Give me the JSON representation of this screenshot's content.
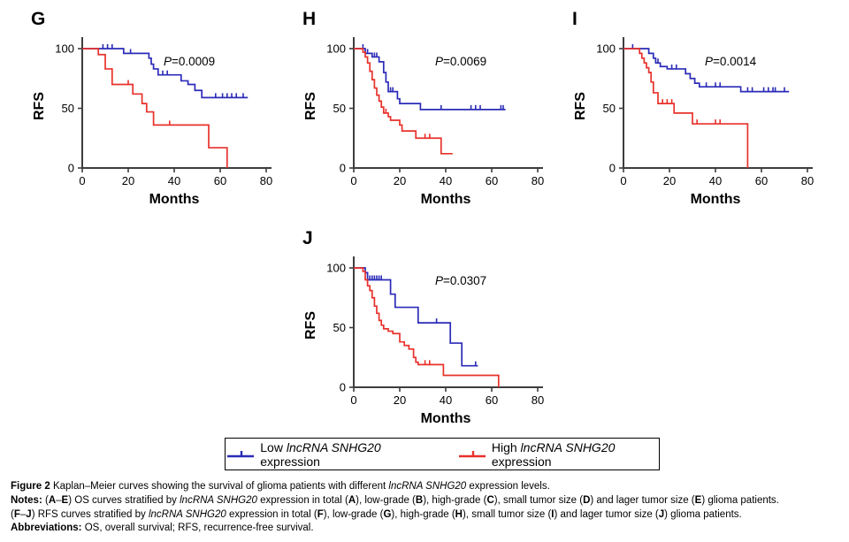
{
  "colors": {
    "low_line": "#2b2bb8",
    "high_line": "#e8312b",
    "axis": "#3d3d3d",
    "text": "#000000"
  },
  "legend": {
    "entries": [
      {
        "key": "low",
        "segments": [
          {
            "t": "Low "
          },
          {
            "t": "lncRNA SNHG20",
            "i": true
          },
          {
            "t": " expression"
          }
        ]
      },
      {
        "key": "high",
        "segments": [
          {
            "t": "High "
          },
          {
            "t": "lncRNA SNHG20",
            "i": true
          },
          {
            "t": " expression"
          }
        ]
      }
    ]
  },
  "caption": {
    "lines": [
      [
        {
          "t": "Figure 2 ",
          "b": true
        },
        {
          "t": "Kaplan–Meier curves showing the survival of glioma patients with different "
        },
        {
          "t": "lncRNA SNHG20",
          "i": true
        },
        {
          "t": " expression levels."
        }
      ],
      [
        {
          "t": "Notes: ",
          "b": true
        },
        {
          "t": "("
        },
        {
          "t": "A",
          "b": true
        },
        {
          "t": "–"
        },
        {
          "t": "E",
          "b": true
        },
        {
          "t": ") OS curves stratified by "
        },
        {
          "t": "lncRNA SNHG20",
          "i": true
        },
        {
          "t": " expression in total ("
        },
        {
          "t": "A",
          "b": true
        },
        {
          "t": "), low-grade ("
        },
        {
          "t": "B",
          "b": true
        },
        {
          "t": "), high-grade ("
        },
        {
          "t": "C",
          "b": true
        },
        {
          "t": "), small tumor size ("
        },
        {
          "t": "D",
          "b": true
        },
        {
          "t": ") and lager tumor size ("
        },
        {
          "t": "E",
          "b": true
        },
        {
          "t": ") glioma patients."
        }
      ],
      [
        {
          "t": "("
        },
        {
          "t": "F",
          "b": true
        },
        {
          "t": "–"
        },
        {
          "t": "J",
          "b": true
        },
        {
          "t": ") RFS curves stratified by "
        },
        {
          "t": "lncRNA SNHG20",
          "i": true
        },
        {
          "t": " expression in total ("
        },
        {
          "t": "F",
          "b": true
        },
        {
          "t": "), low-grade ("
        },
        {
          "t": "G",
          "b": true
        },
        {
          "t": "), high-grade ("
        },
        {
          "t": "H",
          "b": true
        },
        {
          "t": "), small tumor size ("
        },
        {
          "t": "I",
          "b": true
        },
        {
          "t": ") and lager tumor size ("
        },
        {
          "t": "J",
          "b": true
        },
        {
          "t": ") glioma patients."
        }
      ],
      [
        {
          "t": "Abbreviations: ",
          "b": true
        },
        {
          "t": "OS, overall survival; RFS, recurrence-free survival."
        }
      ]
    ]
  },
  "chart_data": {
    "type": "line",
    "subtype": "kaplan-meier-step",
    "xlabel": "Months",
    "ylabel": "RFS",
    "xticks": [
      0,
      20,
      40,
      60,
      80
    ],
    "yticks": [
      0,
      50,
      100
    ],
    "xlim": [
      0,
      80
    ],
    "ylim": [
      0,
      100
    ],
    "legend_position": "bottom-box",
    "panels": [
      {
        "label": "G",
        "p_text": "P",
        "p_value": "=0.0009",
        "series": [
          {
            "name": "Low lncRNA SNHG20 expression",
            "color_key": "low",
            "drops": [
              [
                18,
                96
              ],
              [
                29,
                92
              ],
              [
                30,
                87
              ],
              [
                31,
                83
              ],
              [
                33,
                78
              ],
              [
                43,
                73
              ],
              [
                46,
                70
              ],
              [
                49,
                65
              ],
              [
                52,
                59
              ]
            ],
            "end": 72,
            "censors": [
              [
                9,
                100
              ],
              [
                11,
                100
              ],
              [
                13,
                100
              ],
              [
                21,
                96
              ],
              [
                35,
                78
              ],
              [
                37,
                78
              ],
              [
                58,
                59
              ],
              [
                61,
                59
              ],
              [
                63,
                59
              ],
              [
                65,
                59
              ],
              [
                67,
                59
              ],
              [
                70,
                59
              ]
            ]
          },
          {
            "name": "High lncRNA SNHG20 expression",
            "color_key": "high",
            "drops": [
              [
                7,
                95
              ],
              [
                10,
                83
              ],
              [
                13,
                70
              ],
              [
                22,
                62
              ],
              [
                26,
                54
              ],
              [
                28,
                47
              ],
              [
                31,
                36
              ],
              [
                55,
                17
              ],
              [
                63,
                0
              ]
            ],
            "end": 63,
            "censors": [
              [
                20,
                70
              ],
              [
                38,
                36
              ]
            ]
          }
        ]
      },
      {
        "label": "H",
        "p_text": "P",
        "p_value": "=0.0069",
        "series": [
          {
            "name": "Low lncRNA SNHG20 expression",
            "color_key": "low",
            "drops": [
              [
                5,
                96
              ],
              [
                8,
                93
              ],
              [
                11,
                89
              ],
              [
                13,
                80
              ],
              [
                14,
                72
              ],
              [
                15,
                64
              ],
              [
                19,
                58
              ],
              [
                20,
                54
              ],
              [
                29,
                49
              ]
            ],
            "end": 66,
            "censors": [
              [
                4,
                100
              ],
              [
                6,
                96
              ],
              [
                9,
                93
              ],
              [
                10,
                93
              ],
              [
                16,
                64
              ],
              [
                17,
                64
              ],
              [
                38,
                49
              ],
              [
                51,
                49
              ],
              [
                53,
                49
              ],
              [
                55,
                49
              ],
              [
                64,
                49
              ],
              [
                65,
                49
              ]
            ]
          },
          {
            "name": "High lncRNA SNHG20 expression",
            "color_key": "high",
            "drops": [
              [
                4,
                97
              ],
              [
                5,
                93
              ],
              [
                6,
                88
              ],
              [
                7,
                81
              ],
              [
                8,
                74
              ],
              [
                9,
                67
              ],
              [
                10,
                61
              ],
              [
                11,
                56
              ],
              [
                12,
                51
              ],
              [
                13,
                46
              ],
              [
                15,
                43
              ],
              [
                16,
                40
              ],
              [
                20,
                36
              ],
              [
                21,
                31
              ],
              [
                27,
                25
              ],
              [
                38,
                12
              ]
            ],
            "end": 43,
            "censors": [
              [
                14,
                46
              ],
              [
                31,
                25
              ],
              [
                33,
                25
              ]
            ]
          }
        ]
      },
      {
        "label": "I",
        "p_text": "P",
        "p_value": "=0.0014",
        "series": [
          {
            "name": "Low lncRNA SNHG20 expression",
            "color_key": "low",
            "drops": [
              [
                11,
                96
              ],
              [
                13,
                92
              ],
              [
                14,
                88
              ],
              [
                16,
                85
              ],
              [
                19,
                83
              ],
              [
                27,
                79
              ],
              [
                29,
                75
              ],
              [
                31,
                71
              ],
              [
                33,
                68
              ],
              [
                51,
                64
              ]
            ],
            "end": 72,
            "censors": [
              [
                4,
                100
              ],
              [
                15,
                88
              ],
              [
                21,
                83
              ],
              [
                23,
                83
              ],
              [
                36,
                68
              ],
              [
                40,
                68
              ],
              [
                42,
                68
              ],
              [
                54,
                64
              ],
              [
                56,
                64
              ],
              [
                61,
                64
              ],
              [
                63,
                64
              ],
              [
                65,
                64
              ],
              [
                66,
                64
              ],
              [
                70,
                64
              ]
            ]
          },
          {
            "name": "High lncRNA SNHG20 expression",
            "color_key": "high",
            "drops": [
              [
                7,
                96
              ],
              [
                8,
                92
              ],
              [
                9,
                88
              ],
              [
                10,
                84
              ],
              [
                11,
                80
              ],
              [
                12,
                72
              ],
              [
                13,
                63
              ],
              [
                15,
                54
              ],
              [
                22,
                46
              ],
              [
                30,
                37
              ],
              [
                54,
                0
              ]
            ],
            "end": 54,
            "censors": [
              [
                17,
                54
              ],
              [
                19,
                54
              ],
              [
                21,
                54
              ],
              [
                32,
                37
              ],
              [
                40,
                37
              ],
              [
                42,
                37
              ]
            ]
          }
        ]
      },
      {
        "label": "J",
        "p_text": "P",
        "p_value": "=0.0307",
        "series": [
          {
            "name": "Low lncRNA SNHG20 expression",
            "color_key": "low",
            "drops": [
              [
                5,
                96
              ],
              [
                6,
                90
              ],
              [
                16,
                78
              ],
              [
                18,
                67
              ],
              [
                28,
                54
              ],
              [
                42,
                37
              ],
              [
                47,
                18
              ]
            ],
            "end": 54,
            "censors": [
              [
                7,
                90
              ],
              [
                8,
                90
              ],
              [
                9,
                90
              ],
              [
                10,
                90
              ],
              [
                11,
                90
              ],
              [
                12,
                90
              ],
              [
                36,
                54
              ],
              [
                53,
                18
              ]
            ]
          },
          {
            "name": "High lncRNA SNHG20 expression",
            "color_key": "high",
            "drops": [
              [
                4,
                97
              ],
              [
                5,
                90
              ],
              [
                6,
                85
              ],
              [
                7,
                81
              ],
              [
                8,
                75
              ],
              [
                9,
                68
              ],
              [
                10,
                62
              ],
              [
                11,
                56
              ],
              [
                12,
                52
              ],
              [
                13,
                49
              ],
              [
                15,
                47
              ],
              [
                17,
                45
              ],
              [
                20,
                38
              ],
              [
                22,
                35
              ],
              [
                24,
                32
              ],
              [
                26,
                25
              ],
              [
                27,
                21
              ],
              [
                28,
                19
              ],
              [
                39,
                10
              ],
              [
                63,
                0
              ]
            ],
            "end": 63,
            "censors": [
              [
                31,
                19
              ],
              [
                33,
                19
              ]
            ]
          }
        ]
      }
    ]
  }
}
